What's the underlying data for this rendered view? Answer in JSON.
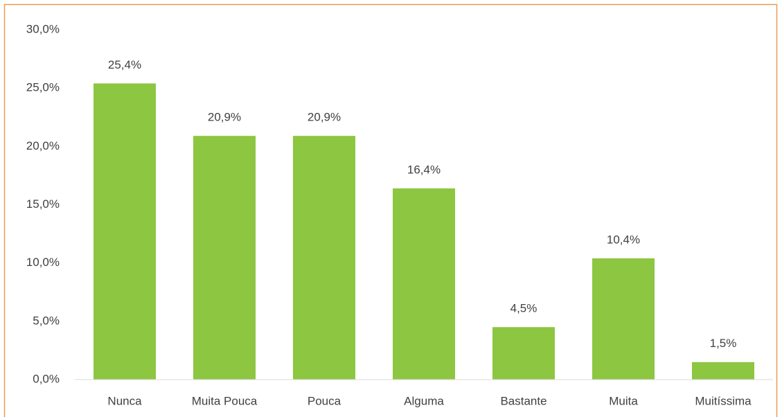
{
  "chart_data": {
    "type": "bar",
    "categories": [
      "Nunca",
      "Muita Pouca",
      "Pouca",
      "Alguma",
      "Bastante",
      "Muita",
      "Muitíssima"
    ],
    "values": [
      25.4,
      20.9,
      20.9,
      16.4,
      4.5,
      10.4,
      1.5
    ],
    "value_labels": [
      "25,4%",
      "20,9%",
      "20,9%",
      "16,4%",
      "4,5%",
      "10,4%",
      "1,5%"
    ],
    "color": "#8dc641",
    "ylim": [
      0,
      30
    ],
    "yticks": [
      {
        "value": 0,
        "label": "0,0%"
      },
      {
        "value": 5,
        "label": "5,0%"
      },
      {
        "value": 10,
        "label": "10,0%"
      },
      {
        "value": 15,
        "label": "15,0%"
      },
      {
        "value": 20,
        "label": "20,0%"
      },
      {
        "value": 25,
        "label": "25,0%"
      },
      {
        "value": 30,
        "label": "30,0%"
      }
    ],
    "grid": false
  }
}
